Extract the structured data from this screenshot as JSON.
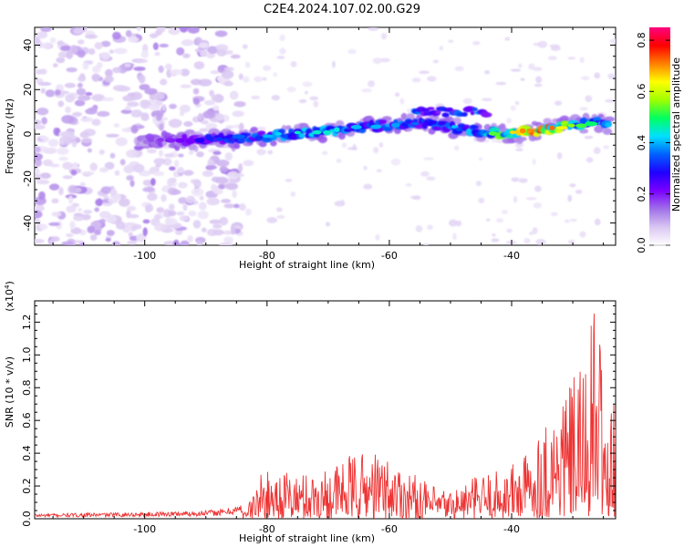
{
  "title": "C2E4.2024.107.02.00.G29",
  "chart_data": [
    {
      "type": "heatmap",
      "xlabel": "Height of straight line (km)",
      "ylabel": "Frequency (Hz)",
      "xlim": [
        -118,
        -23
      ],
      "ylim": [
        -50,
        48
      ],
      "xticks": [
        -100,
        -80,
        -60,
        -40
      ],
      "yticks": [
        -40,
        -20,
        0,
        20,
        40
      ],
      "colorbar": {
        "label": "Normalized spectral amplitude",
        "range": [
          0.0,
          0.85
        ],
        "ticks": [
          "0.0",
          "0.2",
          "0.4",
          "0.6",
          "0.8"
        ],
        "colormap": [
          "#ffffff",
          "#d9c6f2",
          "#a070e8",
          "#7a00ff",
          "#2000ff",
          "#0060ff",
          "#00e0ff",
          "#00ff60",
          "#a0ff00",
          "#ffff00",
          "#ff8000",
          "#ff0000",
          "#ff0080"
        ]
      },
      "noise_region": {
        "x": [
          -118,
          -84
        ],
        "y": [
          -50,
          48
        ]
      },
      "ridge": {
        "x": [
          -101,
          -95,
          -90,
          -85,
          -80,
          -75,
          -70,
          -65,
          -60,
          -55,
          -50,
          -45,
          -40,
          -35,
          -30,
          -25,
          -24
        ],
        "y": [
          -3,
          -3,
          -2,
          -2,
          -1,
          0,
          1,
          3,
          4,
          5,
          3,
          1,
          0,
          2,
          4,
          5,
          4
        ],
        "peak_amplitude": [
          0.15,
          0.2,
          0.3,
          0.35,
          0.4,
          0.45,
          0.45,
          0.4,
          0.4,
          0.35,
          0.4,
          0.45,
          0.65,
          0.8,
          0.55,
          0.45,
          0.45
        ]
      },
      "upper_branch": {
        "x": [
          -56,
          -44
        ],
        "y": [
          10,
          10
        ]
      }
    },
    {
      "type": "line",
      "xlabel": "Height of straight line (km)",
      "ylabel": "SNR (10 * v/v)",
      "yscale_label": "(x10",
      "yscale_exp": "4",
      "yscale_close": ")",
      "xlim": [
        -118,
        -23
      ],
      "ylim": [
        0,
        1.33
      ],
      "xticks": [
        -100,
        -80,
        -60,
        -40
      ],
      "yticks": [
        "0.0",
        "0.2",
        "0.4",
        "0.6",
        "0.8",
        "1.0",
        "1.2"
      ],
      "color": "#ee3333",
      "envelope": {
        "x": [
          -118,
          -100,
          -91,
          -87,
          -83,
          -81,
          -78,
          -74,
          -70,
          -66,
          -63,
          -60,
          -56,
          -53,
          -50,
          -48,
          -45,
          -42,
          -38,
          -35,
          -33,
          -31,
          -29,
          -28,
          -27,
          -26,
          -25,
          -24.5,
          -24,
          -23
        ],
        "y": [
          0.03,
          0.04,
          0.05,
          0.06,
          0.1,
          0.28,
          0.3,
          0.28,
          0.32,
          0.4,
          0.42,
          0.38,
          0.28,
          0.2,
          0.18,
          0.22,
          0.28,
          0.3,
          0.4,
          0.58,
          0.7,
          0.82,
          0.9,
          0.95,
          1.25,
          1.33,
          1.1,
          0.35,
          0.7,
          0.7
        ]
      }
    }
  ]
}
